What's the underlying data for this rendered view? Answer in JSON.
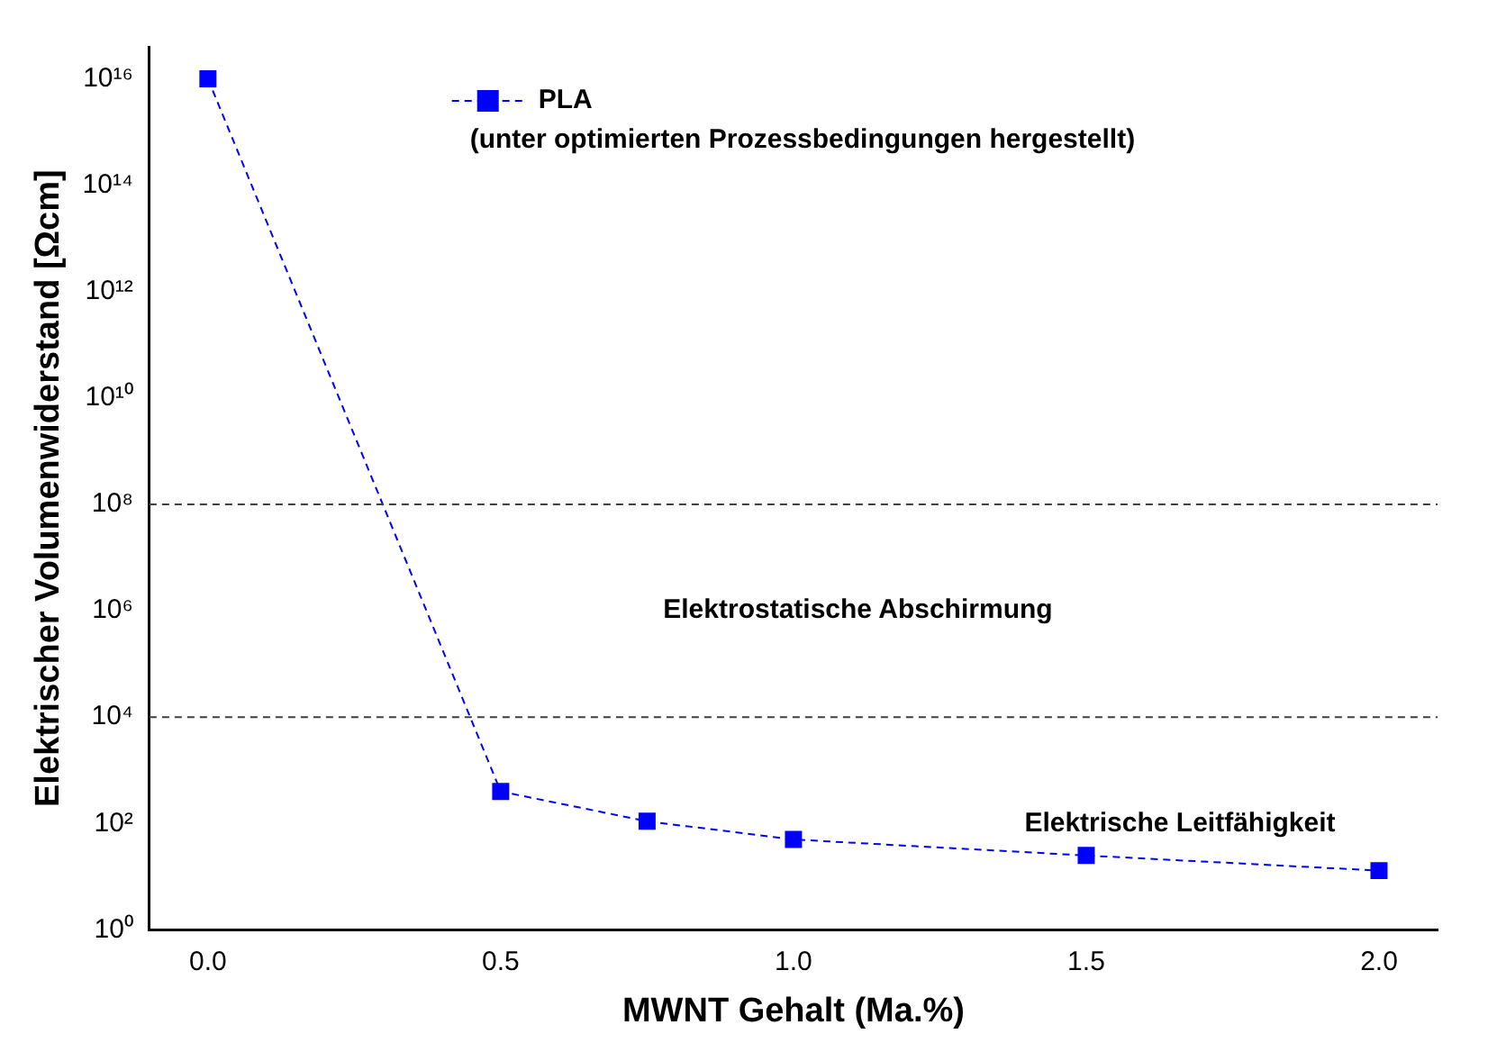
{
  "chart_data": {
    "type": "line",
    "xlabel": "MWNT Gehalt (Ma.%)",
    "ylabel": "Elektrischer Volumenwiderstand [Ωcm]",
    "x": [
      0,
      0.5,
      0.75,
      1,
      1.5,
      2
    ],
    "series": [
      {
        "name": "PLA",
        "color": "#0000ff",
        "values": [
          1e+16,
          400,
          110,
          50,
          25,
          13
        ]
      }
    ],
    "log": "y",
    "marker": "square",
    "line_style": "dashed",
    "grid": false,
    "legend": "top",
    "xlim": [
      -0.1,
      2.1
    ],
    "xticks": [
      {
        "value": 0,
        "label": "0.0"
      },
      {
        "value": 0.5,
        "label": "0.5"
      },
      {
        "value": 1,
        "label": "1.0"
      },
      {
        "value": 1.5,
        "label": "1.5"
      },
      {
        "value": 2,
        "label": "2.0"
      }
    ],
    "ylim": [
      1,
      4e+16
    ],
    "yticks": [
      {
        "value": 1,
        "label": "10⁰"
      },
      {
        "value": 100,
        "label": "10²"
      },
      {
        "value": 10000,
        "label": "10⁴"
      },
      {
        "value": 1000000,
        "label": "10⁶"
      },
      {
        "value": 100000000,
        "label": "10⁸"
      },
      {
        "value": 10000000000,
        "label": "10¹⁰"
      },
      {
        "value": 1000000000000,
        "label": "10¹²"
      },
      {
        "value": 100000000000000,
        "label": "10¹⁴"
      },
      {
        "value": 10000000000000000,
        "label": "10¹⁶"
      }
    ],
    "ref_lines": [
      {
        "axis": "y",
        "value": 100000000,
        "line_style": "dashed",
        "color": "#404040"
      },
      {
        "axis": "y",
        "value": 10000,
        "line_style": "dashed",
        "color": "#404040"
      }
    ],
    "annotations": [
      "(unter optimierten Prozessbedingungen hergestellt)",
      "Elektrostatische Abschirmung",
      "Elektrische Leitfähigkeit"
    ]
  }
}
